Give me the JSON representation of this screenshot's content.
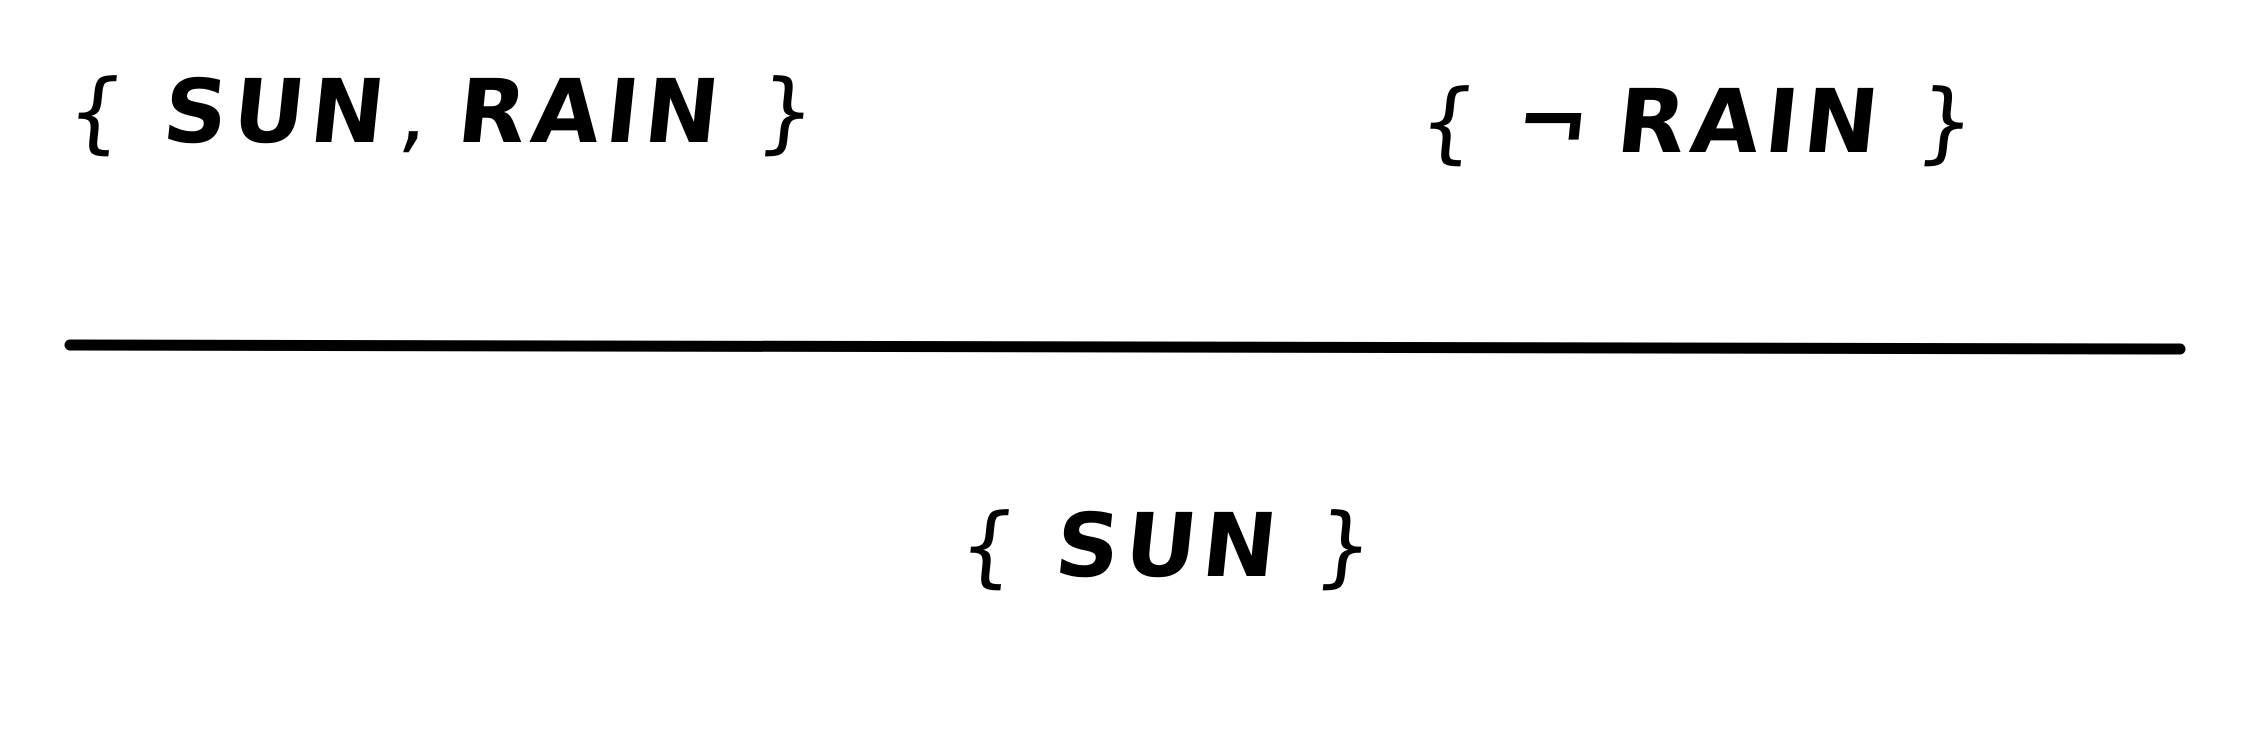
{
  "premises": [
    {
      "open_brace": "{",
      "items": [
        "SUN",
        "RAIN"
      ],
      "separator": ",",
      "close_brace": "}"
    },
    {
      "open_brace": "{",
      "negation": "¬",
      "atom": "RAIN",
      "close_brace": "}"
    }
  ],
  "conclusion": {
    "open_brace": "{",
    "atom": "SUN",
    "close_brace": "}"
  },
  "colors": {
    "ink": "#000000",
    "background": "#ffffff"
  }
}
